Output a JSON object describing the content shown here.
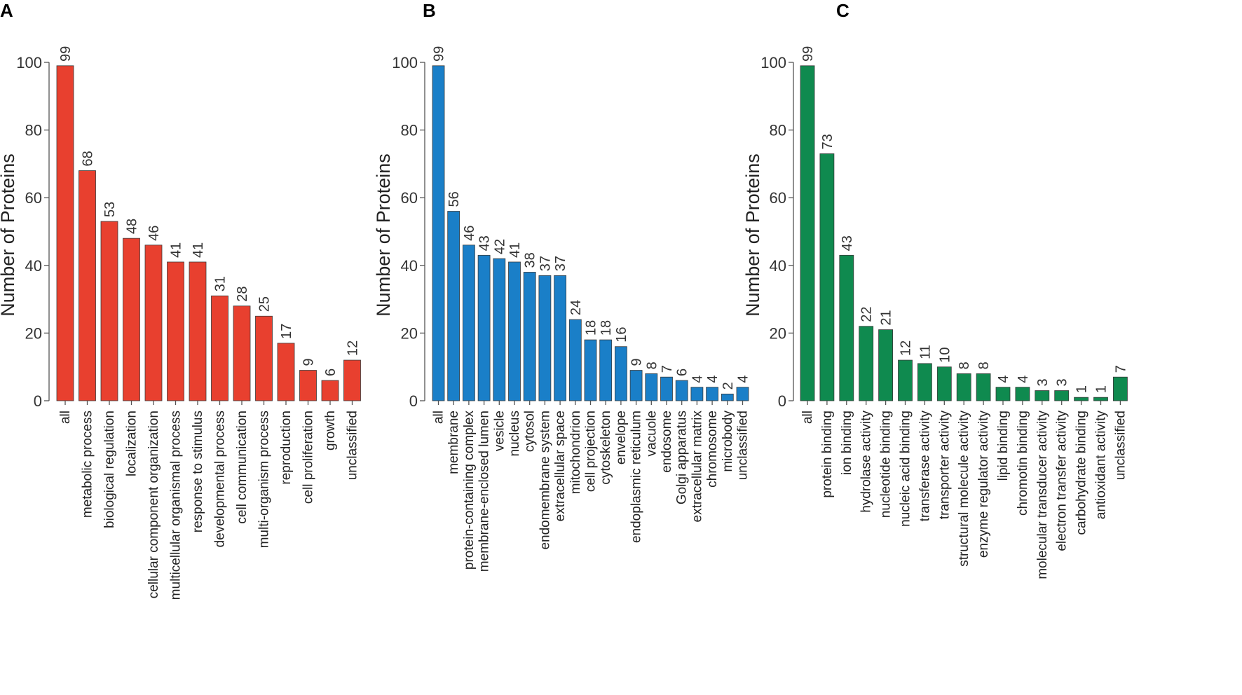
{
  "chart_data": [
    {
      "type": "bar",
      "panel": "A",
      "color": "#e8402f",
      "ylabel": "Number of Proteins",
      "ylim": [
        0,
        100
      ],
      "yticks": [
        0,
        20,
        40,
        60,
        80,
        100
      ],
      "categories": [
        "all",
        "metabolic process",
        "biological regulation",
        "localization",
        "cellular component organization",
        "multicellular organismal process",
        "response to stimulus",
        "developmental process",
        "cell communication",
        "multi-organism process",
        "reproduction",
        "cell proliferation",
        "growth",
        "unclassified"
      ],
      "values": [
        99,
        68,
        53,
        48,
        46,
        41,
        41,
        31,
        28,
        25,
        17,
        9,
        6,
        12
      ]
    },
    {
      "type": "bar",
      "panel": "B",
      "color": "#1a7fc8",
      "ylabel": "Number of Proteins",
      "ylim": [
        0,
        100
      ],
      "yticks": [
        0,
        20,
        40,
        60,
        80,
        100
      ],
      "categories": [
        "all",
        "membrane",
        "protein-containing complex",
        "membrane-enclosed lumen",
        "vesicle",
        "nucleus",
        "cytosol",
        "endomembrane system",
        "extracellular space",
        "mitochondrion",
        "cell projection",
        "cytoskeleton",
        "envelope",
        "endoplasmic reticulum",
        "vacuole",
        "endosome",
        "Golgi apparatus",
        "extracellular matrix",
        "chromosome",
        "microbody",
        "unclassified"
      ],
      "values": [
        99,
        56,
        46,
        43,
        42,
        41,
        38,
        37,
        37,
        24,
        18,
        18,
        16,
        9,
        8,
        7,
        6,
        4,
        4,
        2,
        4
      ]
    },
    {
      "type": "bar",
      "panel": "C",
      "color": "#0f8a4f",
      "ylabel": "Number of Proteins",
      "ylim": [
        0,
        100
      ],
      "yticks": [
        0,
        20,
        40,
        60,
        80,
        100
      ],
      "categories": [
        "all",
        "protein binding",
        "ion binding",
        "hydrolase activity",
        "nucleotide binding",
        "nucleic acid binding",
        "transferase activity",
        "transporter activity",
        "structural molecule activity",
        "enzyme regulator activity",
        "lipid binding",
        "chromotin binding",
        "molecular transducer activity",
        "electron transfer activity",
        "carbohydrate binding",
        "antioxidant activity",
        "unclassified"
      ],
      "values": [
        99,
        73,
        43,
        22,
        21,
        12,
        11,
        10,
        8,
        8,
        4,
        4,
        3,
        3,
        1,
        1,
        7
      ]
    }
  ]
}
